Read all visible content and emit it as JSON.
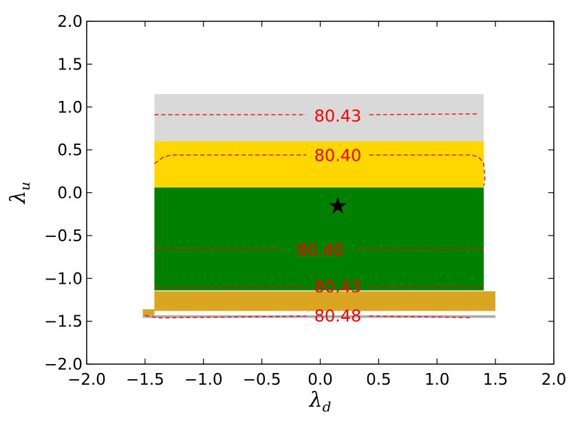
{
  "chart_data": {
    "type": "contour",
    "xlabel_symbol": "λ",
    "xlabel_sub": "d",
    "ylabel_symbol": "λ",
    "ylabel_sub": "u",
    "xlim": [
      -2.0,
      2.0
    ],
    "ylim": [
      -2.0,
      2.0
    ],
    "xticks": [
      "−2.0",
      "−1.5",
      "−1.0",
      "−0.5",
      "0.0",
      "0.5",
      "1.0",
      "1.5",
      "2.0"
    ],
    "yticks": [
      "2.0",
      "1.5",
      "1.0",
      "0.5",
      "0.0",
      "−0.5",
      "−1.0",
      "−1.5",
      "−2.0"
    ],
    "xtick_values": [
      -2.0,
      -1.5,
      -1.0,
      -0.5,
      0.0,
      0.5,
      1.0,
      1.5,
      2.0
    ],
    "ytick_values": [
      2.0,
      1.5,
      1.0,
      0.5,
      0.0,
      -0.5,
      -1.0,
      -1.5,
      -2.0
    ],
    "regions": [
      {
        "color": "#d9d9d9",
        "x": [
          -1.42,
          1.4
        ],
        "y": [
          0.6,
          1.15
        ]
      },
      {
        "color": "#ffd700",
        "x": [
          -1.42,
          1.4
        ],
        "y": [
          0.06,
          0.6
        ]
      },
      {
        "color": "#008000",
        "x": [
          -1.42,
          1.4
        ],
        "y": [
          -1.14,
          0.06
        ]
      },
      {
        "color": "#daa520",
        "polygon": [
          [
            -1.42,
            -1.15
          ],
          [
            1.5,
            -1.15
          ],
          [
            1.5,
            -1.38
          ],
          [
            1.4,
            -1.38
          ],
          [
            -1.42,
            -1.38
          ],
          [
            -1.42,
            -1.36
          ],
          [
            -1.52,
            -1.36
          ],
          [
            -1.52,
            -1.43
          ],
          [
            -1.42,
            -1.43
          ],
          [
            -1.42,
            -1.38
          ]
        ]
      },
      {
        "color": "#aaaaaa",
        "x": [
          -1.52,
          1.5
        ],
        "y": [
          -1.43,
          -1.46
        ]
      }
    ],
    "contours": [
      {
        "label": "80.43",
        "color": "#ff0000",
        "label_at": [
          0.15,
          0.9
        ],
        "points": [
          [
            -1.42,
            0.91
          ],
          [
            -0.12,
            0.91
          ]
        ],
        "points2": [
          [
            0.42,
            0.91
          ],
          [
            1.35,
            0.92
          ]
        ]
      },
      {
        "label": "80.40",
        "color": "#ff0000",
        "label_at": [
          0.15,
          0.44
        ],
        "points": [
          [
            -1.42,
            0.34
          ],
          [
            -1.35,
            0.41
          ],
          [
            -1.28,
            0.44
          ],
          [
            -0.12,
            0.44
          ]
        ],
        "points2": [
          [
            0.42,
            0.44
          ],
          [
            1.3,
            0.44
          ],
          [
            1.36,
            0.41
          ],
          [
            1.4,
            0.34
          ],
          [
            1.41,
            0.15
          ],
          [
            1.4,
            0.08
          ]
        ]
      },
      {
        "label": "80.40",
        "color": "#ff0000",
        "label_at": [
          0.0,
          -0.66
        ],
        "points": [
          [
            -1.42,
            -0.66
          ],
          [
            -0.3,
            -0.66
          ]
        ],
        "points2": [
          [
            0.3,
            -0.66
          ],
          [
            1.4,
            -0.65
          ]
        ]
      },
      {
        "label": "80.43",
        "color": "#ff0000",
        "label_at": [
          0.15,
          -1.09
        ],
        "points": [
          [
            -1.42,
            -1.11
          ],
          [
            -0.12,
            -1.1
          ]
        ],
        "points2": [
          [
            0.42,
            -1.1
          ],
          [
            1.4,
            -1.1
          ]
        ]
      },
      {
        "label": "80.48",
        "color": "#ff0000",
        "label_at": [
          0.15,
          -1.43
        ],
        "points": [
          [
            -1.5,
            -1.43
          ],
          [
            -1.4,
            -1.46
          ],
          [
            -1.3,
            -1.46
          ],
          [
            -0.12,
            -1.44
          ]
        ],
        "points2": [
          [
            0.42,
            -1.44
          ],
          [
            1.0,
            -1.45
          ],
          [
            1.3,
            -1.46
          ]
        ]
      }
    ],
    "marker": {
      "x": 0.15,
      "y": -0.15,
      "symbol": "★",
      "color": "#000000"
    },
    "grid": false
  }
}
